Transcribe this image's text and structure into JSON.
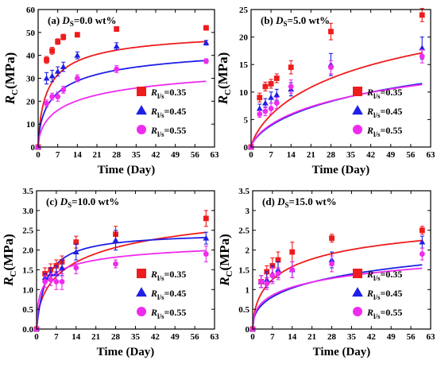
{
  "colors": {
    "R035": "#ee1c1c",
    "R045": "#1f1fe6",
    "R055": "#ef2bef"
  },
  "markers": {
    "R035": "square",
    "R045": "triangle",
    "R055": "circle"
  },
  "legend_symbol": "R",
  "legend_subscript": "l/s",
  "legend_values": [
    "=0.35",
    "=0.45",
    "=0.55"
  ],
  "chart_data": [
    {
      "type": "scatter",
      "panel_label": "(a) ",
      "title_symbol": "D",
      "title_sub": "S",
      "title_value": "=0.0 wt%",
      "xlabel": "Time (Day)",
      "ylabel_symbol": "R",
      "ylabel_sub": "C",
      "ylabel_unit": "(MPa)",
      "xlim": [
        0,
        63
      ],
      "ylim": [
        0,
        60
      ],
      "xticks": [
        "0",
        "7",
        "14",
        "21",
        "28",
        "35",
        "42",
        "49",
        "56",
        "63"
      ],
      "yticks": [
        "0",
        "10",
        "20",
        "30",
        "40",
        "50",
        "60"
      ],
      "legend_position": "bottom-right",
      "series": [
        {
          "key": "R035",
          "x": [
            0,
            3,
            5,
            7,
            9,
            14,
            28,
            60
          ],
          "y": [
            0,
            38,
            42,
            46,
            48,
            49,
            51.5,
            52
          ],
          "err": [
            0,
            1.5,
            1.5,
            1.2,
            1.2,
            1,
            1,
            1
          ],
          "curve": [
            52,
            2.8,
            0.75
          ]
        },
        {
          "key": "R045",
          "x": [
            0,
            3,
            5,
            7,
            9,
            14,
            28,
            60
          ],
          "y": [
            0,
            30,
            31,
            33,
            35,
            40,
            44,
            45.5
          ],
          "err": [
            0,
            2.5,
            2.5,
            2,
            2,
            1.5,
            1.5,
            1
          ],
          "curve": [
            47,
            3.5,
            0.65
          ]
        },
        {
          "key": "R055",
          "x": [
            0,
            3,
            5,
            7,
            9,
            14,
            28,
            60
          ],
          "y": [
            0,
            19,
            22,
            22,
            25,
            30,
            34,
            37.5
          ],
          "err": [
            0,
            1.5,
            1.5,
            2,
            1.5,
            1.5,
            1.5,
            1
          ],
          "curve": [
            41,
            5,
            0.6
          ]
        }
      ]
    },
    {
      "type": "scatter",
      "panel_label": "(b) ",
      "title_symbol": "D",
      "title_sub": "S",
      "title_value": "=5.0 wt%",
      "xlabel": "Time (Day)",
      "ylabel_symbol": "R",
      "ylabel_sub": "C",
      "ylabel_unit": "(MPa)",
      "xlim": [
        0,
        63
      ],
      "ylim": [
        0,
        25
      ],
      "xticks": [
        "0",
        "7",
        "14",
        "21",
        "28",
        "35",
        "42",
        "49",
        "56",
        "63"
      ],
      "yticks": [
        "0",
        "5",
        "10",
        "15",
        "20",
        "25"
      ],
      "legend_position": "bottom-right",
      "series": [
        {
          "key": "R035",
          "x": [
            0,
            3,
            5,
            7,
            9,
            14,
            28,
            60
          ],
          "y": [
            0,
            9,
            11,
            11.5,
            12.5,
            14.5,
            21,
            24
          ],
          "err": [
            0,
            0.8,
            0.8,
            0.8,
            0.8,
            1.2,
            1.5,
            1.2
          ],
          "curve": [
            33,
            20,
            0.75
          ]
        },
        {
          "key": "R045",
          "x": [
            0,
            3,
            5,
            7,
            9,
            14,
            28,
            60
          ],
          "y": [
            0,
            7,
            8,
            9,
            9.5,
            10.5,
            15,
            18
          ],
          "err": [
            0,
            0.8,
            0.8,
            1,
            1,
            1.2,
            2,
            2
          ],
          "curve": [
            26,
            22,
            0.7
          ]
        },
        {
          "key": "R055",
          "x": [
            0,
            3,
            5,
            7,
            9,
            14,
            28,
            60
          ],
          "y": [
            0,
            6,
            6.5,
            7,
            8,
            11,
            14.5,
            16.5
          ],
          "err": [
            0,
            0.6,
            0.8,
            1,
            1,
            1.2,
            1.2,
            1.2
          ],
          "curve": [
            23,
            18,
            0.7
          ]
        }
      ]
    },
    {
      "type": "scatter",
      "panel_label": "(c) ",
      "title_symbol": "D",
      "title_sub": "S",
      "title_value": "=10.0 wt%",
      "xlabel": "Time (Day)",
      "ylabel_symbol": "R",
      "ylabel_sub": "C",
      "ylabel_unit": "(MPa)",
      "xlim": [
        0,
        63
      ],
      "ylim": [
        0,
        3.5
      ],
      "xticks": [
        "0",
        "7",
        "14",
        "21",
        "28",
        "35",
        "42",
        "49",
        "56",
        "63"
      ],
      "yticks": [
        "0.0",
        "0.5",
        "1.0",
        "1.5",
        "2.0",
        "2.5",
        "3.0",
        "3.5"
      ],
      "legend_position": "bottom-right",
      "series": [
        {
          "key": "R035",
          "x": [
            0,
            3,
            5,
            7,
            9,
            14,
            28,
            60
          ],
          "y": [
            0,
            1.4,
            1.5,
            1.6,
            1.7,
            2.2,
            2.4,
            2.8
          ],
          "err": [
            0,
            0.15,
            0.15,
            0.15,
            0.15,
            0.15,
            0.2,
            0.2
          ],
          "curve": [
            3.6,
            5.5,
            0.6
          ]
        },
        {
          "key": "R045",
          "x": [
            0,
            3,
            5,
            7,
            9,
            14,
            28,
            60
          ],
          "y": [
            0,
            1.3,
            1.4,
            1.4,
            1.55,
            1.95,
            2.25,
            2.3
          ],
          "err": [
            0,
            0.1,
            0.15,
            0.2,
            0.2,
            0.2,
            0.25,
            0.15
          ],
          "curve": [
            2.45,
            3.5,
            1.0
          ]
        },
        {
          "key": "R055",
          "x": [
            0,
            3,
            5,
            7,
            9,
            14,
            28,
            60
          ],
          "y": [
            0,
            1.2,
            1.25,
            1.2,
            1.2,
            1.55,
            1.65,
            1.9
          ],
          "err": [
            0,
            0.15,
            0.15,
            0.2,
            0.2,
            0.15,
            0.1,
            0.2
          ],
          "curve": [
            2.4,
            2.0,
            0.55
          ]
        }
      ]
    },
    {
      "type": "scatter",
      "panel_label": "(d) ",
      "title_symbol": "D",
      "title_sub": "S",
      "title_value": "=15.0 wt%",
      "xlabel": "Time (Day)",
      "ylabel_symbol": "R",
      "ylabel_sub": "C",
      "ylabel_unit": "(MPa)",
      "xlim": [
        0,
        63
      ],
      "ylim": [
        0,
        3.5
      ],
      "xticks": [
        "0",
        "7",
        "14",
        "21",
        "28",
        "35",
        "42",
        "49",
        "56",
        "63"
      ],
      "yticks": [
        "0",
        "0.5",
        "1",
        "1.5",
        "2",
        "2.5",
        "3",
        "3.5"
      ],
      "legend_position": "bottom-right",
      "series": [
        {
          "key": "R035",
          "x": [
            0,
            3,
            5,
            7,
            9,
            14,
            28,
            60
          ],
          "y": [
            0,
            1.2,
            1.45,
            1.6,
            1.75,
            1.95,
            2.3,
            2.5
          ],
          "err": [
            0,
            0.15,
            0.15,
            0.2,
            0.2,
            0.25,
            0.1,
            0.1
          ],
          "curve": [
            3.2,
            5,
            0.6
          ]
        },
        {
          "key": "R045",
          "x": [
            0,
            3,
            5,
            7,
            9,
            14,
            28,
            60
          ],
          "y": [
            0,
            1.2,
            1.25,
            1.4,
            1.5,
            1.5,
            1.75,
            2.2
          ],
          "err": [
            0,
            0.15,
            0.2,
            0.2,
            0.2,
            0.2,
            0.2,
            0.15
          ],
          "curve": [
            4.2,
            10,
            0.45
          ]
        },
        {
          "key": "R055",
          "x": [
            0,
            3,
            5,
            7,
            9,
            14,
            28,
            60
          ],
          "y": [
            0,
            1.2,
            1.15,
            1.35,
            1.4,
            1.5,
            1.65,
            1.9
          ],
          "err": [
            0,
            0.15,
            0.15,
            0.2,
            0.15,
            0.2,
            0.2,
            0.15
          ],
          "curve": [
            3.0,
            6,
            0.45
          ]
        }
      ]
    }
  ]
}
